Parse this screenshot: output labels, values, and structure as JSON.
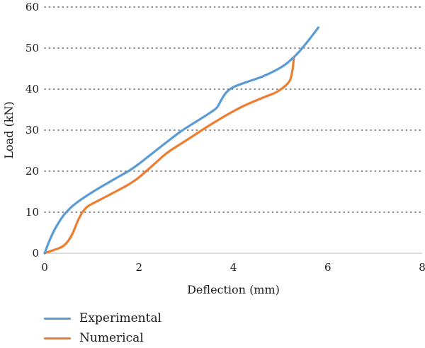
{
  "chart_data": {
    "type": "line",
    "title": "",
    "xlabel": "Deflection (mm)",
    "ylabel": "Load (kN)",
    "xlim": [
      0,
      8
    ],
    "ylim": [
      0,
      60
    ],
    "xticks": [
      "0",
      "2",
      "4",
      "6",
      "8"
    ],
    "yticks": [
      "0",
      "10",
      "20",
      "30",
      "40",
      "50",
      "60"
    ],
    "grid": "horizontal dotted",
    "legend_position": "bottom-left",
    "series": [
      {
        "name": "Experimental",
        "color": "#5b9bd5",
        "x": [
          0,
          0.1,
          0.2,
          0.3,
          0.4,
          0.5,
          0.6,
          0.8,
          1.0,
          1.2,
          1.5,
          1.8,
          2.0,
          2.3,
          2.6,
          2.9,
          3.2,
          3.5,
          3.65,
          3.75,
          3.85,
          4.0,
          4.3,
          4.6,
          4.9,
          5.1,
          5.25,
          5.4,
          5.6,
          5.8
        ],
        "y": [
          0,
          3,
          5.5,
          7.5,
          9.2,
          10.5,
          11.6,
          13.3,
          14.8,
          16.2,
          18.2,
          20.2,
          21.8,
          24.5,
          27.2,
          29.8,
          32,
          34.2,
          35.5,
          37.5,
          39.2,
          40.5,
          41.8,
          43,
          44.6,
          46,
          47.5,
          49.2,
          52,
          55
        ]
      },
      {
        "name": "Numerical",
        "color": "#ed7d31",
        "x": [
          0,
          0.1,
          0.2,
          0.3,
          0.4,
          0.5,
          0.6,
          0.7,
          0.8,
          0.9,
          1.0,
          1.2,
          1.5,
          1.8,
          2.0,
          2.3,
          2.6,
          3.0,
          3.4,
          3.8,
          4.2,
          4.6,
          4.9,
          5.1,
          5.2,
          5.25,
          5.28
        ],
        "y": [
          0,
          0.4,
          0.8,
          1.2,
          1.8,
          3,
          5,
          7.8,
          10,
          11.3,
          12,
          13.2,
          15,
          16.9,
          18.5,
          21.5,
          24.5,
          27.5,
          30.5,
          33.3,
          35.8,
          37.8,
          39.2,
          40.8,
          42.2,
          44.5,
          47.5
        ]
      }
    ]
  }
}
